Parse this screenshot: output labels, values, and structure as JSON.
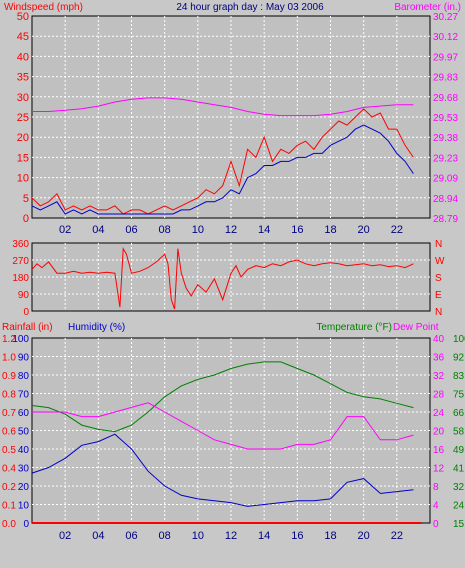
{
  "header": {
    "title": "24 hour graph day : May 03 2006",
    "left_label": "Windspeed (mph)",
    "right_label": "Barometer (in.)"
  },
  "colors": {
    "background": "#c8c8c8",
    "plot_background": "#c0c0c0",
    "grid": "#ffffff",
    "wind": "#ff0000",
    "avg_wind": "#0000cc",
    "barometer": "#ff00ff",
    "direction": "#ff0000",
    "rain": "#ff0000",
    "humidity": "#0000cc",
    "temperature": "#008000",
    "dewpoint": "#ff00ff",
    "title": "#000080"
  },
  "chart_data": [
    {
      "type": "line",
      "xticks": [
        "02",
        "04",
        "06",
        "08",
        "10",
        "12",
        "14",
        "16",
        "18",
        "20",
        "22"
      ],
      "xlim": [
        0,
        24
      ],
      "left_axis": {
        "label": "Windspeed (mph)",
        "ticks": [
          "0",
          "2.5",
          "5",
          "7.5",
          "10",
          "12.5",
          "15",
          "17.5",
          "20",
          "22.5",
          "25",
          "27.5",
          "30",
          "32.5",
          "35",
          "37.5",
          "40",
          "42.5",
          "45",
          "47.5",
          "50"
        ],
        "ylim": [
          0,
          50
        ],
        "unit_note": "tick labels shown: 0,5,10,...,50"
      },
      "right_axis": {
        "label": "Barometer (in.)",
        "ticks": [
          "28.79",
          "28.94",
          "29.09",
          "29.23",
          "29.38",
          "29.53",
          "29.68",
          "29.83",
          "29.97",
          "30.12",
          "30.27"
        ],
        "ylim": [
          28.79,
          30.27
        ]
      },
      "series": [
        {
          "name": "Windspeed (mph)",
          "x": [
            0,
            0.5,
            1,
            1.5,
            2,
            2.5,
            3,
            3.5,
            4,
            4.5,
            5,
            5.5,
            6,
            6.5,
            7,
            7.5,
            8,
            8.5,
            9,
            9.5,
            10,
            10.5,
            11,
            11.5,
            12,
            12.5,
            13,
            13.5,
            14,
            14.5,
            15,
            15.5,
            16,
            16.5,
            17,
            17.5,
            18,
            18.5,
            19,
            19.5,
            20,
            20.5,
            21,
            21.5,
            22,
            22.5,
            23
          ],
          "values": [
            5,
            3,
            4,
            6,
            2,
            3,
            2,
            3,
            2,
            2,
            3,
            1,
            2,
            2,
            1,
            2,
            3,
            2,
            3,
            4,
            5,
            7,
            6,
            8,
            14,
            8,
            17,
            15,
            20,
            14,
            17,
            16,
            18,
            19,
            17,
            20,
            22,
            24,
            23,
            25,
            27,
            25,
            26,
            22,
            22,
            18,
            15
          ]
        },
        {
          "name": "",
          "x": [
            0,
            0.5,
            1,
            1.5,
            2,
            2.5,
            3,
            3.5,
            4,
            4.5,
            5,
            5.5,
            6,
            6.5,
            7,
            7.5,
            8,
            8.5,
            9,
            9.5,
            10,
            10.5,
            11,
            11.5,
            12,
            12.5,
            13,
            13.5,
            14,
            14.5,
            15,
            15.5,
            16,
            16.5,
            17,
            17.5,
            18,
            18.5,
            19,
            19.5,
            20,
            20.5,
            21,
            21.5,
            22,
            22.5,
            23
          ],
          "values": [
            3,
            2,
            3,
            4,
            1,
            2,
            1,
            2,
            1,
            1,
            1,
            1,
            1,
            1,
            1,
            1,
            1,
            1,
            2,
            2,
            3,
            4,
            4,
            5,
            7,
            6,
            10,
            11,
            13,
            13,
            14,
            14,
            15,
            15,
            16,
            16,
            18,
            19,
            20,
            22,
            23,
            22,
            21,
            19,
            16,
            14,
            11
          ]
        },
        {
          "name": "Barometer (in.)",
          "x": [
            0,
            1,
            2,
            3,
            4,
            5,
            6,
            7,
            8,
            9,
            10,
            11,
            12,
            13,
            14,
            15,
            16,
            17,
            18,
            19,
            20,
            21,
            22,
            23
          ],
          "values": [
            29.57,
            29.57,
            29.58,
            29.59,
            29.61,
            29.64,
            29.66,
            29.67,
            29.67,
            29.66,
            29.64,
            29.62,
            29.6,
            29.57,
            29.55,
            29.54,
            29.54,
            29.54,
            29.55,
            29.57,
            29.6,
            29.61,
            29.62,
            29.62
          ]
        }
      ]
    },
    {
      "type": "line",
      "xticks": [
        "02",
        "04",
        "06",
        "08",
        "10",
        "12",
        "14",
        "16",
        "18",
        "20",
        "22"
      ],
      "xlim": [
        0,
        24
      ],
      "left_axis": {
        "ticks": [
          "0",
          "90",
          "180",
          "270",
          "360"
        ],
        "ylim": [
          0,
          360
        ]
      },
      "right_axis": {
        "ticks": [
          "N",
          "W",
          "S",
          "E",
          "N"
        ]
      },
      "series": [
        {
          "name": "",
          "x": [
            0,
            0.3,
            0.6,
            1,
            1.5,
            2,
            2.5,
            3,
            3.5,
            4,
            4.5,
            5,
            5.3,
            5.5,
            5.7,
            6,
            6.5,
            7,
            7.5,
            8,
            8.2,
            8.4,
            8.6,
            8.8,
            9,
            9.3,
            9.6,
            10,
            10.5,
            11,
            11.5,
            12,
            12.3,
            12.6,
            13,
            13.5,
            14,
            14.5,
            15,
            15.5,
            16,
            16.5,
            17,
            17.5,
            18,
            18.5,
            19,
            19.5,
            20,
            20.5,
            21,
            21.5,
            22,
            22.5,
            23
          ],
          "values": [
            220,
            250,
            230,
            260,
            200,
            200,
            210,
            200,
            205,
            200,
            205,
            200,
            20,
            330,
            300,
            200,
            210,
            230,
            260,
            300,
            250,
            60,
            10,
            330,
            200,
            120,
            80,
            140,
            100,
            170,
            60,
            200,
            240,
            180,
            220,
            240,
            230,
            250,
            240,
            260,
            270,
            250,
            240,
            250,
            255,
            250,
            240,
            245,
            250,
            240,
            245,
            235,
            240,
            230,
            250
          ]
        }
      ]
    },
    {
      "type": "line",
      "xticks": [
        "02",
        "04",
        "06",
        "08",
        "10",
        "12",
        "14",
        "16",
        "18",
        "20",
        "22"
      ],
      "xlim": [
        0,
        24
      ],
      "labels": {
        "rain": "Rainfall (in)",
        "humidity": "Humidity (%)",
        "temperature": "Temperature (°F)",
        "dewpoint": "Dew Point"
      },
      "axes": {
        "humidity_ticks": [
          "0",
          "10",
          "20",
          "30",
          "40",
          "50",
          "60",
          "70",
          "80",
          "90",
          "100"
        ],
        "humidity_ylim": [
          0,
          100
        ],
        "rain_ticks": [
          "0.0",
          "0.1",
          "0.2",
          "0.4",
          "0.5",
          "0.6",
          "0.7",
          "0.8",
          "0.9",
          "1.0",
          "1.2"
        ],
        "dew_ticks": [
          "0",
          "4",
          "8",
          "12",
          "16",
          "20",
          "24",
          "28",
          "32",
          "36",
          "40"
        ],
        "temp_ticks": [
          "15",
          "24",
          "32",
          "41",
          "49",
          "58",
          "66",
          "75",
          "83",
          "92",
          "100"
        ],
        "temp_ylim": [
          15,
          100
        ]
      },
      "series": [
        {
          "name": "Temperature (°F)",
          "x": [
            0,
            1,
            2,
            3,
            4,
            5,
            6,
            7,
            8,
            9,
            10,
            11,
            12,
            13,
            14,
            15,
            16,
            17,
            18,
            19,
            20,
            21,
            22,
            23
          ],
          "values": [
            69,
            68,
            65,
            60,
            58,
            57,
            60,
            66,
            73,
            78,
            81,
            83,
            86,
            88,
            89,
            89,
            86,
            83,
            79,
            75,
            73,
            72,
            70,
            68
          ]
        },
        {
          "name": "Humidity (%)",
          "x": [
            0,
            1,
            2,
            3,
            4,
            5,
            6,
            7,
            8,
            9,
            10,
            11,
            12,
            13,
            14,
            15,
            16,
            17,
            18,
            19,
            20,
            21,
            22,
            23
          ],
          "values": [
            27,
            30,
            35,
            42,
            44,
            48,
            40,
            28,
            20,
            15,
            13,
            12,
            11,
            9,
            10,
            11,
            12,
            12,
            13,
            22,
            24,
            16,
            17,
            18
          ]
        },
        {
          "name": "Dew Point",
          "x": [
            0,
            1,
            2,
            3,
            4,
            5,
            6,
            7,
            8,
            9,
            10,
            11,
            12,
            13,
            14,
            15,
            16,
            17,
            18,
            19,
            20,
            21,
            22,
            23
          ],
          "values": [
            24,
            24,
            24,
            23,
            23,
            24,
            25,
            26,
            24,
            22,
            20,
            18,
            17,
            16,
            16,
            16,
            17,
            17,
            18,
            23,
            23,
            18,
            18,
            19
          ]
        },
        {
          "name": "Rainfall (in)",
          "x": [
            0,
            23.5
          ],
          "values": [
            0,
            0
          ]
        }
      ]
    }
  ]
}
